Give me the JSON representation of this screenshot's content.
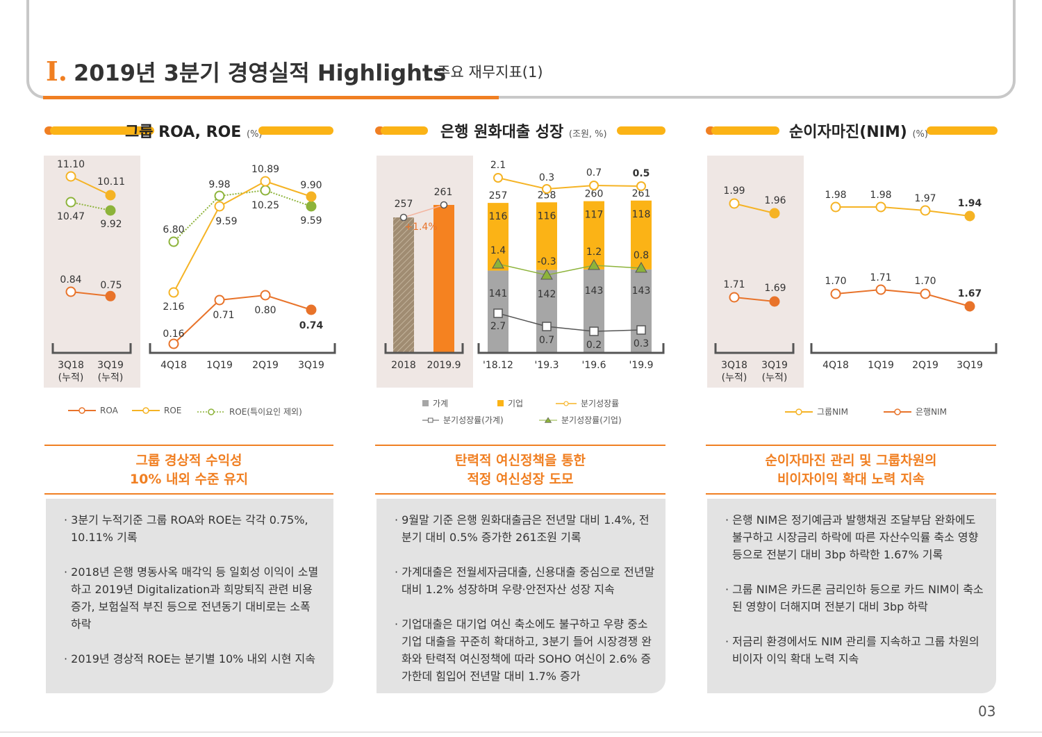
{
  "header": {
    "roman": "I.",
    "title": "2019년 3분기 경영실적 Highlights",
    "subtitle": "_ 주요 재무지표(1)"
  },
  "sections": {
    "roa": {
      "title": "그룹 ROA, ROE",
      "unit": "(%)"
    },
    "loan": {
      "title": "은행 원화대출 성장",
      "unit": "(조원, %)"
    },
    "nim": {
      "title": "순이자마진(NIM)",
      "unit": "(%)"
    }
  },
  "chart_data": [
    {
      "id": "roa_roe",
      "type": "line",
      "panel_left": {
        "categories": [
          "3Q18\n(누적)",
          "3Q19\n(누적)"
        ],
        "series": [
          {
            "name": "ROA",
            "values": [
              0.84,
              0.75
            ],
            "color": "#e8732a"
          },
          {
            "name": "ROE",
            "values": [
              11.1,
              10.11
            ],
            "color": "#f5b324"
          },
          {
            "name": "ROE(특이요인 제외)",
            "values": [
              10.47,
              9.92
            ],
            "color": "#8db33a"
          }
        ]
      },
      "panel_right": {
        "categories": [
          "4Q18",
          "1Q19",
          "2Q19",
          "3Q19"
        ],
        "series": [
          {
            "name": "ROA",
            "values": [
              0.16,
              0.71,
              0.8,
              0.74
            ],
            "color": "#e8732a"
          },
          {
            "name": "ROE",
            "values": [
              2.16,
              9.59,
              10.89,
              9.9
            ],
            "color": "#f5b324"
          },
          {
            "name": "ROE(특이요인 제외)",
            "values": [
              6.8,
              9.98,
              10.25,
              9.59
            ],
            "color": "#8db33a"
          }
        ]
      },
      "labels_left": [
        "11.10",
        "10.11",
        "10.47",
        "9.92",
        "0.84",
        "0.75"
      ],
      "labels_right": [
        "9.98",
        "10.89",
        "9.90",
        "6.80",
        "9.59",
        "10.25",
        "9.59",
        "2.16",
        "0.71",
        "0.80",
        "0.74",
        "0.16"
      ],
      "legend": [
        "ROA",
        "ROE",
        "ROE(특이요인 제외)"
      ]
    },
    {
      "id": "loan_growth",
      "type": "bar",
      "panel_left": {
        "categories": [
          "2018",
          "2019.9"
        ],
        "values": [
          257,
          261
        ],
        "growth_label": "+1.4%"
      },
      "panel_right": {
        "categories": [
          "'18.12",
          "'19.3",
          "'19.6",
          "'19.9"
        ],
        "series": [
          {
            "name": "가계",
            "values": [
              141,
              142,
              143,
              143
            ],
            "color": "#a6a6a6"
          },
          {
            "name": "기업",
            "values": [
              116,
              116,
              117,
              118
            ],
            "color": "#fbb316"
          }
        ],
        "totals": [
          257,
          258,
          260,
          261
        ],
        "growth_total": [
          2.1,
          0.3,
          0.7,
          0.5
        ],
        "growth_corp": [
          1.4,
          -0.3,
          1.2,
          0.8
        ],
        "growth_household": [
          2.7,
          0.7,
          0.2,
          0.3
        ]
      },
      "legend": [
        "가계",
        "기업",
        "분기성장률",
        "분기성장률(가계)",
        "분기성장률(기업)"
      ]
    },
    {
      "id": "nim",
      "type": "line",
      "panel_left": {
        "categories": [
          "3Q18\n(누적)",
          "3Q19\n(누적)"
        ],
        "series": [
          {
            "name": "그룹NIM",
            "values": [
              1.99,
              1.96
            ],
            "color": "#f5b324"
          },
          {
            "name": "은행NIM",
            "values": [
              1.71,
              1.69
            ],
            "color": "#e8732a"
          }
        ]
      },
      "panel_right": {
        "categories": [
          "4Q18",
          "1Q19",
          "2Q19",
          "3Q19"
        ],
        "series": [
          {
            "name": "그룹NIM",
            "values": [
              1.98,
              1.98,
              1.97,
              1.94
            ],
            "color": "#f5b324"
          },
          {
            "name": "은행NIM",
            "values": [
              1.7,
              1.71,
              1.7,
              1.67
            ],
            "color": "#e8732a"
          }
        ]
      },
      "legend": [
        "그룹NIM",
        "은행NIM"
      ]
    }
  ],
  "boxes": [
    {
      "head1": "그룹 경상적 수익성",
      "head2": "10% 내외 수준 유지",
      "bullets": [
        "· 3분기 누적기준 그룹 ROA와 ROE는 각각 0.75%, 10.11% 기록",
        "· 2018년 은행 명동사옥 매각익 등 일회성 이익이 소멸하고 2019년 Digitalization과 희망퇴직 관련 비용 증가, 보험실적 부진 등으로 전년동기 대비로는 소폭 하락",
        "· 2019년 경상적 ROE는 분기별 10% 내외 시현 지속"
      ]
    },
    {
      "head1": "탄력적 여신정책을 통한",
      "head2": "적정 여신성장 도모",
      "bullets": [
        "· 9월말 기준 은행 원화대출금은 전년말 대비 1.4%, 전분기 대비 0.5% 증가한 261조원 기록",
        "· 가계대출은 전월세자금대출, 신용대출 중심으로 전년말 대비 1.2% 성장하며 우량·안전자산 성장 지속",
        "· 기업대출은 대기업 여신 축소에도 불구하고 우량 중소기업 대출을 꾸준히 확대하고, 3분기 들어 시장경쟁 완화와 탄력적 여신정책에 따라 SOHO 여신이 2.6% 증가한데 힘입어 전년말 대비 1.7% 증가"
      ]
    },
    {
      "head1": "순이자마진 관리 및 그룹차원의",
      "head2": "비이자이익 확대 노력 지속",
      "bullets": [
        "· 은행 NIM은 정기예금과 발행채권 조달부담 완화에도 불구하고 시장금리 하락에 따른 자산수익률 축소 영향 등으로 전분기 대비 3bp 하락한 1.67% 기록",
        "· 그룹 NIM은 카드론 금리인하 등으로 카드 NIM이 축소된 영향이 더해지며 전분기 대비 3bp 하락",
        "· 저금리 환경에서도 NIM 관리를 지속하고 그룹 차원의 비이자 이익 확대 노력 지속"
      ]
    }
  ],
  "page_number": "03"
}
